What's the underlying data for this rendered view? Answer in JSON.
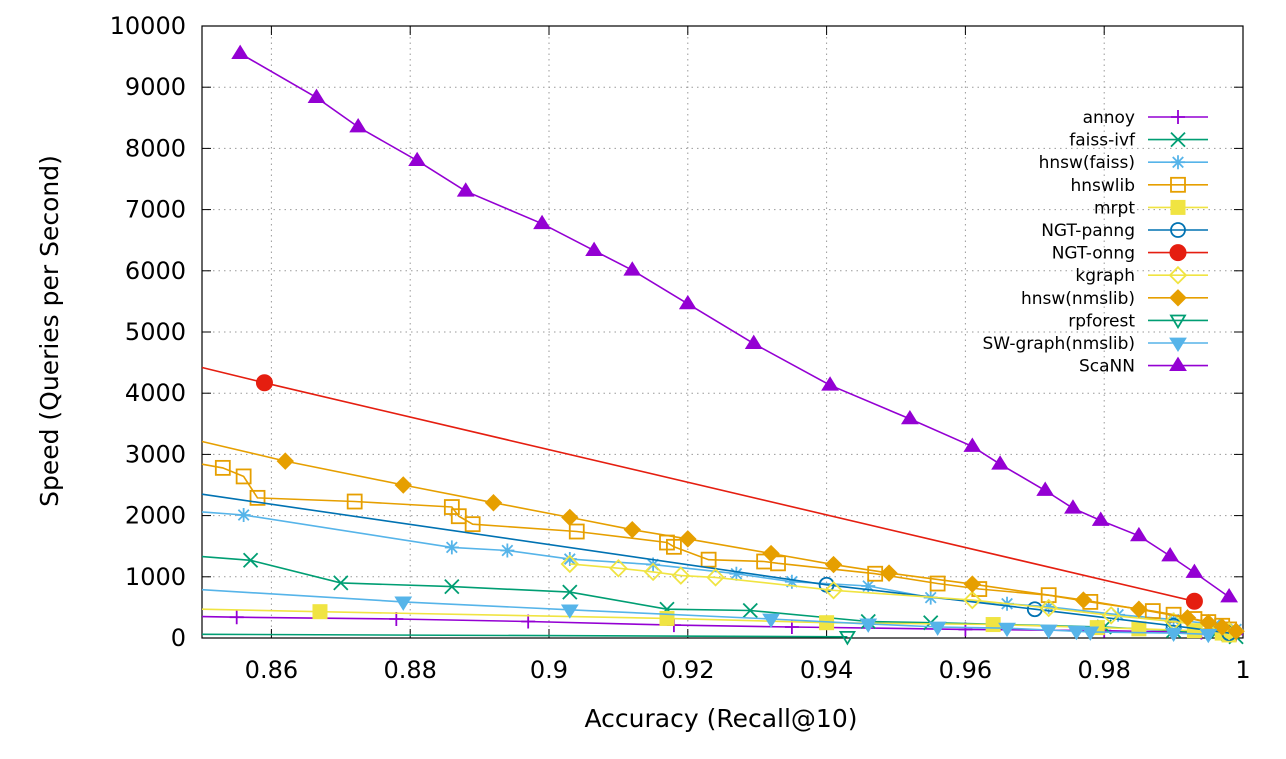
{
  "chart_data": {
    "type": "line",
    "title": "",
    "xlabel": "Accuracy (Recall@10)",
    "ylabel": "Speed (Queries per Second)",
    "xlim": [
      0.85,
      1.0
    ],
    "ylim": [
      0,
      10000
    ],
    "x_ticks": [
      0.86,
      0.88,
      0.9,
      0.92,
      0.94,
      0.96,
      0.98,
      1.0
    ],
    "x_tick_labels": [
      "0.86",
      "0.88",
      "0.9",
      "0.92",
      "0.94",
      "0.96",
      "0.98",
      "1"
    ],
    "y_ticks": [
      0,
      1000,
      2000,
      3000,
      4000,
      5000,
      6000,
      7000,
      8000,
      9000,
      10000
    ],
    "y_tick_labels": [
      "0",
      "1000",
      "2000",
      "3000",
      "4000",
      "5000",
      "6000",
      "7000",
      "8000",
      "9000",
      "10000"
    ],
    "grid": true,
    "legend_position": "right",
    "series": [
      {
        "name": "annoy",
        "color": "#9400d3",
        "marker": "plus",
        "points": [
          [
            0.85,
            350
          ],
          [
            0.855,
            340
          ],
          [
            0.878,
            310
          ],
          [
            0.897,
            270
          ],
          [
            0.918,
            210
          ],
          [
            0.935,
            180
          ],
          [
            0.96,
            140
          ],
          [
            0.98,
            120
          ],
          [
            0.994,
            90
          ],
          [
            0.999,
            60
          ]
        ]
      },
      {
        "name": "faiss-ivf",
        "color": "#009e73",
        "marker": "cross",
        "points": [
          [
            0.85,
            1330
          ],
          [
            0.857,
            1270
          ],
          [
            0.87,
            900
          ],
          [
            0.886,
            840
          ],
          [
            0.903,
            750
          ],
          [
            0.917,
            470
          ],
          [
            0.929,
            450
          ],
          [
            0.946,
            270
          ],
          [
            0.955,
            250
          ],
          [
            0.98,
            180
          ],
          [
            0.99,
            120
          ],
          [
            0.996,
            70
          ],
          [
            0.999,
            20
          ]
        ]
      },
      {
        "name": "hnsw(faiss)",
        "color": "#56b4e9",
        "marker": "star",
        "points": [
          [
            0.85,
            2060
          ],
          [
            0.856,
            2010
          ],
          [
            0.886,
            1480
          ],
          [
            0.894,
            1430
          ],
          [
            0.903,
            1290
          ],
          [
            0.915,
            1200
          ],
          [
            0.927,
            1050
          ],
          [
            0.935,
            920
          ],
          [
            0.946,
            850
          ],
          [
            0.955,
            660
          ],
          [
            0.966,
            560
          ],
          [
            0.972,
            510
          ],
          [
            0.982,
            380
          ],
          [
            0.99,
            300
          ],
          [
            0.996,
            220
          ],
          [
            0.999,
            140
          ]
        ]
      },
      {
        "name": "hnswlib",
        "color": "#e69f00",
        "marker": "open-square",
        "points": [
          [
            0.85,
            2840
          ],
          [
            0.853,
            2780
          ],
          [
            0.856,
            2640
          ],
          [
            0.858,
            2290
          ],
          [
            0.872,
            2230
          ],
          [
            0.886,
            2140
          ],
          [
            0.887,
            1990
          ],
          [
            0.889,
            1860
          ],
          [
            0.904,
            1740
          ],
          [
            0.917,
            1560
          ],
          [
            0.918,
            1490
          ],
          [
            0.923,
            1280
          ],
          [
            0.931,
            1250
          ],
          [
            0.933,
            1220
          ],
          [
            0.947,
            1050
          ],
          [
            0.956,
            890
          ],
          [
            0.962,
            800
          ],
          [
            0.972,
            700
          ],
          [
            0.978,
            590
          ],
          [
            0.987,
            440
          ],
          [
            0.99,
            380
          ],
          [
            0.993,
            310
          ],
          [
            0.995,
            260
          ],
          [
            0.997,
            200
          ],
          [
            0.998,
            140
          ]
        ]
      },
      {
        "name": "mrpt",
        "color": "#f0e442",
        "marker": "filled-square",
        "points": [
          [
            0.85,
            470
          ],
          [
            0.867,
            430
          ],
          [
            0.917,
            320
          ],
          [
            0.94,
            250
          ],
          [
            0.964,
            220
          ],
          [
            0.979,
            170
          ],
          [
            0.985,
            150
          ],
          [
            0.993,
            120
          ],
          [
            0.997,
            80
          ],
          [
            0.998,
            50
          ]
        ]
      },
      {
        "name": "NGT-panng",
        "color": "#0072b2",
        "marker": "open-circle",
        "points": [
          [
            0.85,
            2350
          ],
          [
            0.94,
            870
          ],
          [
            0.97,
            470
          ],
          [
            0.99,
            200
          ],
          [
            0.998,
            80
          ]
        ]
      },
      {
        "name": "NGT-onng",
        "color": "#e51e10",
        "marker": "filled-circle",
        "points": [
          [
            0.85,
            4420
          ],
          [
            0.859,
            4170
          ],
          [
            0.993,
            600
          ]
        ]
      },
      {
        "name": "kgraph",
        "color": "#f0e442",
        "marker": "open-diamond",
        "points": [
          [
            0.903,
            1210
          ],
          [
            0.91,
            1140
          ],
          [
            0.915,
            1080
          ],
          [
            0.919,
            1020
          ],
          [
            0.924,
            990
          ],
          [
            0.941,
            780
          ],
          [
            0.961,
            620
          ],
          [
            0.972,
            490
          ],
          [
            0.981,
            370
          ],
          [
            0.99,
            270
          ],
          [
            0.995,
            190
          ],
          [
            0.998,
            110
          ]
        ]
      },
      {
        "name": "hnsw(nmslib)",
        "color": "#e69f00",
        "marker": "filled-diamond",
        "points": [
          [
            0.85,
            3210
          ],
          [
            0.862,
            2890
          ],
          [
            0.879,
            2500
          ],
          [
            0.892,
            2210
          ],
          [
            0.903,
            1970
          ],
          [
            0.912,
            1770
          ],
          [
            0.92,
            1620
          ],
          [
            0.932,
            1380
          ],
          [
            0.941,
            1200
          ],
          [
            0.949,
            1060
          ],
          [
            0.961,
            880
          ],
          [
            0.977,
            620
          ],
          [
            0.985,
            470
          ],
          [
            0.992,
            330
          ],
          [
            0.995,
            250
          ],
          [
            0.997,
            180
          ],
          [
            0.999,
            110
          ]
        ]
      },
      {
        "name": "rpforest",
        "color": "#009e73",
        "marker": "open-triangle-down",
        "points": [
          [
            0.85,
            60
          ],
          [
            0.943,
            20
          ]
        ]
      },
      {
        "name": "SW-graph(nmslib)",
        "color": "#56b4e9",
        "marker": "filled-triangle-down",
        "points": [
          [
            0.85,
            790
          ],
          [
            0.879,
            590
          ],
          [
            0.903,
            460
          ],
          [
            0.932,
            310
          ],
          [
            0.946,
            230
          ],
          [
            0.956,
            180
          ],
          [
            0.966,
            160
          ],
          [
            0.972,
            130
          ],
          [
            0.976,
            110
          ],
          [
            0.978,
            100
          ],
          [
            0.99,
            80
          ],
          [
            0.995,
            60
          ]
        ]
      },
      {
        "name": "ScaNN",
        "color": "#9400d3",
        "marker": "filled-triangle-up",
        "points": [
          [
            0.8555,
            9550
          ],
          [
            0.8665,
            8830
          ],
          [
            0.8725,
            8350
          ],
          [
            0.881,
            7800
          ],
          [
            0.888,
            7300
          ],
          [
            0.899,
            6770
          ],
          [
            0.9065,
            6330
          ],
          [
            0.912,
            6010
          ],
          [
            0.92,
            5460
          ],
          [
            0.9295,
            4810
          ],
          [
            0.9405,
            4130
          ],
          [
            0.952,
            3580
          ],
          [
            0.961,
            3130
          ],
          [
            0.965,
            2840
          ],
          [
            0.9715,
            2410
          ],
          [
            0.9755,
            2120
          ],
          [
            0.9795,
            1920
          ],
          [
            0.985,
            1670
          ],
          [
            0.9895,
            1340
          ],
          [
            0.993,
            1070
          ],
          [
            0.998,
            670
          ]
        ]
      }
    ]
  }
}
